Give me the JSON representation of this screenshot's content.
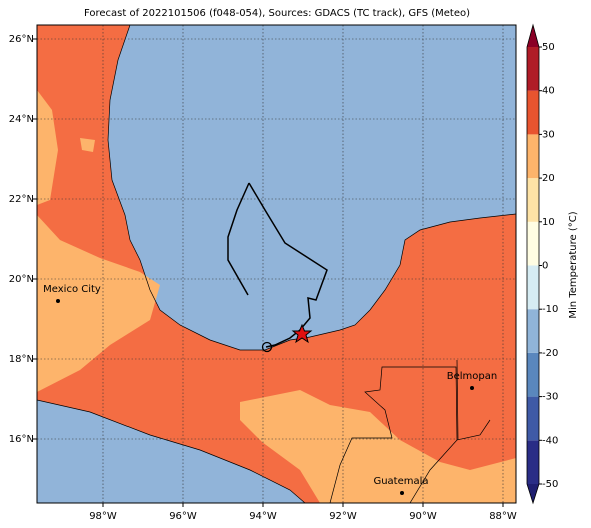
{
  "title": "Forecast of 2022101506 (f048-054), Sources: GDACS (TC track), GFS (Meteo)",
  "map": {
    "lonlim": [
      -99.65,
      -87.675
    ],
    "latlim": [
      14.4,
      26.35
    ],
    "grid": true,
    "lonticks": [
      {
        "value": -98,
        "label": "98°W"
      },
      {
        "value": -96,
        "label": "96°W"
      },
      {
        "value": -94,
        "label": "94°W"
      },
      {
        "value": -92,
        "label": "92°W"
      },
      {
        "value": -90,
        "label": "90°W"
      },
      {
        "value": -88,
        "label": "88°W"
      }
    ],
    "latticks": [
      {
        "value": 16,
        "label": "16°N"
      },
      {
        "value": 18,
        "label": "18°N"
      },
      {
        "value": 20,
        "label": "20°N"
      },
      {
        "value": 22,
        "label": "22°N"
      },
      {
        "value": 24,
        "label": "24°N"
      },
      {
        "value": 26,
        "label": "26°N"
      }
    ]
  },
  "cities": [
    "Mexico City",
    "Belmopan",
    "Guatemala"
  ],
  "colorbar": {
    "label": "Min Temperature (°C)",
    "lim": [
      -50,
      50
    ],
    "ticks": [
      -50,
      -40,
      -30,
      -20,
      -10,
      0,
      10,
      20,
      30,
      40,
      50
    ],
    "colors": [
      "#2a2d86",
      "#3f5aa6",
      "#5a87bd",
      "#90b4d8",
      "#d6ecf3",
      "#fffde3",
      "#fee3a6",
      "#fdb46b",
      "#e8542f",
      "#b01c27"
    ],
    "under": "#1f1f70",
    "over": "#8a0026"
  }
}
